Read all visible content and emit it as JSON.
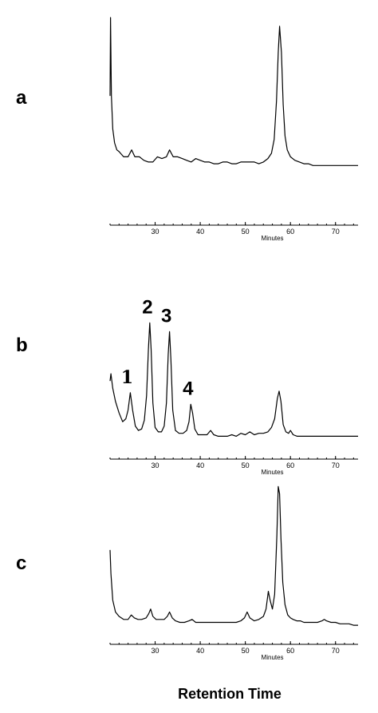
{
  "chart_data": [
    {
      "type": "line",
      "panel_label": "a",
      "xlabel": "Minutes",
      "xlim": [
        20,
        75
      ],
      "xticks": [
        30,
        40,
        50,
        60,
        70
      ],
      "series": [
        {
          "x": [
            20.0,
            20.1,
            20.3,
            20.6,
            21.0,
            21.5,
            22.0,
            23.0,
            24.0,
            24.8,
            25.5,
            26.5,
            27.5,
            28.5,
            29.5,
            30.5,
            31.5,
            32.5,
            33.2,
            34.0,
            35.0,
            36.0,
            37.0,
            38.0,
            39.0,
            40.0,
            41.0,
            42.0,
            43.0,
            44.0,
            45.0,
            46.0,
            47.0,
            48.0,
            49.0,
            50.0,
            51.0,
            52.0,
            53.0,
            54.0,
            55.0,
            55.8,
            56.4,
            56.9,
            57.3,
            57.6,
            58.0,
            58.4,
            58.8,
            59.3,
            60.0,
            61.0,
            62.0,
            63.0,
            64.0,
            65.0,
            66.0,
            67.0,
            68.0,
            69.0,
            70.0,
            71.0,
            72.0,
            73.0,
            74.0,
            75.0
          ],
          "y": [
            0.55,
            1.0,
            0.55,
            0.36,
            0.28,
            0.24,
            0.23,
            0.2,
            0.2,
            0.24,
            0.2,
            0.2,
            0.18,
            0.17,
            0.17,
            0.2,
            0.19,
            0.2,
            0.24,
            0.2,
            0.2,
            0.19,
            0.18,
            0.17,
            0.19,
            0.18,
            0.17,
            0.17,
            0.16,
            0.16,
            0.17,
            0.17,
            0.16,
            0.16,
            0.17,
            0.17,
            0.17,
            0.17,
            0.16,
            0.17,
            0.19,
            0.22,
            0.3,
            0.52,
            0.8,
            0.95,
            0.8,
            0.5,
            0.32,
            0.24,
            0.2,
            0.18,
            0.17,
            0.16,
            0.16,
            0.15,
            0.15,
            0.15,
            0.15,
            0.15,
            0.15,
            0.15,
            0.15,
            0.15,
            0.15,
            0.15
          ]
        }
      ]
    },
    {
      "type": "line",
      "panel_label": "b",
      "xlabel": "Minutes",
      "xlim": [
        20,
        75
      ],
      "xticks": [
        30,
        40,
        50,
        60,
        70
      ],
      "peak_labels": [
        {
          "text": "1",
          "x": 24.5
        },
        {
          "text": "2",
          "x": 29.0
        },
        {
          "text": "3",
          "x": 33.2
        },
        {
          "text": "4",
          "x": 38.0
        }
      ],
      "series": [
        {
          "x": [
            20.0,
            20.2,
            20.6,
            21.2,
            22.0,
            22.8,
            23.5,
            24.0,
            24.5,
            25.0,
            25.6,
            26.3,
            27.0,
            27.6,
            28.1,
            28.5,
            28.8,
            29.1,
            29.5,
            30.0,
            30.7,
            31.4,
            32.0,
            32.5,
            32.9,
            33.2,
            33.5,
            33.9,
            34.5,
            35.3,
            36.2,
            37.0,
            37.5,
            37.9,
            38.3,
            38.8,
            39.5,
            40.5,
            41.5,
            42.3,
            43.0,
            44.0,
            45.0,
            46.0,
            47.0,
            48.0,
            49.0,
            50.0,
            51.0,
            52.0,
            53.0,
            54.0,
            55.0,
            55.8,
            56.5,
            57.1,
            57.5,
            57.9,
            58.4,
            59.0,
            59.6,
            60.0,
            60.6,
            61.5,
            62.5,
            63.5,
            64.5,
            65.5,
            66.5,
            67.5,
            68.5,
            69.5,
            70.5,
            71.5,
            72.5,
            73.5,
            74.5,
            75.0
          ],
          "y": [
            0.4,
            0.45,
            0.35,
            0.26,
            0.18,
            0.12,
            0.14,
            0.2,
            0.32,
            0.2,
            0.09,
            0.06,
            0.07,
            0.13,
            0.3,
            0.62,
            0.8,
            0.62,
            0.25,
            0.08,
            0.05,
            0.05,
            0.09,
            0.25,
            0.58,
            0.74,
            0.55,
            0.2,
            0.06,
            0.04,
            0.04,
            0.06,
            0.12,
            0.24,
            0.18,
            0.07,
            0.03,
            0.03,
            0.03,
            0.06,
            0.03,
            0.02,
            0.02,
            0.02,
            0.03,
            0.02,
            0.04,
            0.03,
            0.05,
            0.03,
            0.04,
            0.04,
            0.05,
            0.08,
            0.14,
            0.28,
            0.33,
            0.26,
            0.1,
            0.05,
            0.04,
            0.06,
            0.03,
            0.02,
            0.02,
            0.02,
            0.02,
            0.02,
            0.02,
            0.02,
            0.02,
            0.02,
            0.02,
            0.02,
            0.02,
            0.02,
            0.02,
            0.02
          ]
        }
      ]
    },
    {
      "type": "line",
      "panel_label": "c",
      "xlabel": "Minutes",
      "xlim": [
        20,
        75
      ],
      "xticks": [
        30,
        40,
        50,
        60,
        70
      ],
      "series": [
        {
          "x": [
            20.0,
            20.2,
            20.6,
            21.2,
            22.0,
            23.0,
            24.0,
            24.7,
            25.4,
            26.2,
            27.0,
            28.0,
            28.6,
            29.0,
            29.5,
            30.2,
            31.0,
            32.0,
            32.7,
            33.2,
            33.8,
            34.5,
            35.5,
            36.5,
            37.5,
            38.2,
            39.0,
            40.0,
            41.0,
            42.0,
            43.0,
            44.0,
            45.0,
            46.0,
            47.0,
            48.0,
            49.0,
            49.8,
            50.4,
            51.0,
            52.0,
            53.0,
            54.0,
            54.6,
            55.1,
            55.5,
            56.0,
            56.5,
            57.0,
            57.3,
            57.6,
            57.9,
            58.3,
            58.8,
            59.4,
            60.0,
            60.6,
            61.4,
            62.2,
            63.0,
            64.0,
            65.0,
            66.0,
            67.0,
            67.5,
            68.0,
            69.0,
            70.0,
            71.0,
            72.0,
            73.0,
            74.0,
            75.0
          ],
          "y": [
            0.52,
            0.36,
            0.18,
            0.1,
            0.07,
            0.05,
            0.05,
            0.08,
            0.06,
            0.05,
            0.05,
            0.06,
            0.09,
            0.12,
            0.07,
            0.05,
            0.05,
            0.05,
            0.07,
            0.1,
            0.06,
            0.04,
            0.03,
            0.03,
            0.04,
            0.05,
            0.03,
            0.03,
            0.03,
            0.03,
            0.03,
            0.03,
            0.03,
            0.03,
            0.03,
            0.03,
            0.04,
            0.06,
            0.1,
            0.06,
            0.04,
            0.05,
            0.07,
            0.12,
            0.24,
            0.18,
            0.12,
            0.22,
            0.62,
            0.95,
            0.9,
            0.6,
            0.3,
            0.15,
            0.08,
            0.06,
            0.05,
            0.04,
            0.04,
            0.03,
            0.03,
            0.03,
            0.03,
            0.04,
            0.05,
            0.04,
            0.03,
            0.03,
            0.02,
            0.02,
            0.02,
            0.01,
            0.01
          ]
        }
      ]
    }
  ],
  "x_title": "Retention Time"
}
